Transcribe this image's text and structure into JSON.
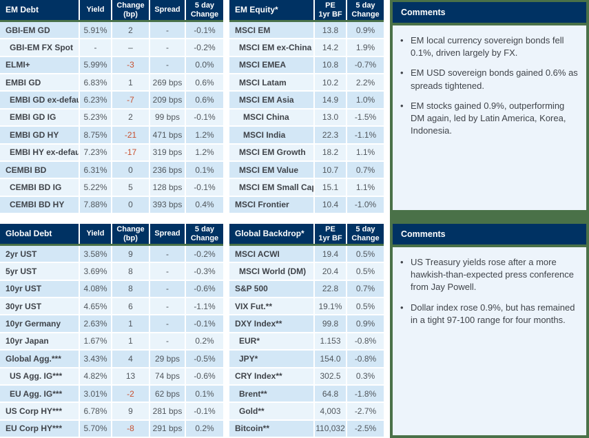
{
  "colors": {
    "navy": "#003263",
    "green": "#4a7148",
    "row_dark": "#d3e7f6",
    "row_light": "#eaf4fb",
    "panel_body": "#edf4fb",
    "red": "#c7502f",
    "text_label": "#3f4349",
    "text_value": "#50565c"
  },
  "tables": {
    "em_debt": {
      "title": "EM Debt",
      "columns": [
        "Yield",
        "Change\n(bp)",
        "Spread",
        "5 day\nChange"
      ],
      "fields": [
        "label",
        "yield",
        "change",
        "spread",
        "five_day"
      ],
      "rows": [
        {
          "label": "GBI-EM GD",
          "indent": 0,
          "yield": "5.91%",
          "change": "2",
          "spread": "-",
          "five_day": "-0.1%"
        },
        {
          "label": "GBI-EM FX Spot",
          "indent": 1,
          "yield": "-",
          "change": "–",
          "spread": "-",
          "five_day": "-0.2%"
        },
        {
          "label": "ELMI+",
          "indent": 0,
          "yield": "5.99%",
          "change": "-3",
          "spread": "-",
          "five_day": "0.0%"
        },
        {
          "label": "EMBI GD",
          "indent": 0,
          "yield": "6.83%",
          "change": "1",
          "spread": "269 bps",
          "five_day": "0.6%"
        },
        {
          "label": "EMBI GD ex-default",
          "indent": 1,
          "yield": "6.23%",
          "change": "-7",
          "spread": "209 bps",
          "five_day": "0.6%"
        },
        {
          "label": "EMBI GD IG",
          "indent": 1,
          "yield": "5.23%",
          "change": "2",
          "spread": "99 bps",
          "five_day": "-0.1%"
        },
        {
          "label": "EMBI GD HY",
          "indent": 1,
          "yield": "8.75%",
          "change": "-21",
          "spread": "471 bps",
          "five_day": "1.2%"
        },
        {
          "label": "EMBI HY ex-default",
          "indent": 1,
          "yield": "7.23%",
          "change": "-17",
          "spread": "319 bps",
          "five_day": "1.2%"
        },
        {
          "label": "CEMBI BD",
          "indent": 0,
          "yield": "6.31%",
          "change": "0",
          "spread": "236 bps",
          "five_day": "0.1%"
        },
        {
          "label": "CEMBI BD IG",
          "indent": 1,
          "yield": "5.22%",
          "change": "5",
          "spread": "128 bps",
          "five_day": "-0.1%"
        },
        {
          "label": "CEMBI BD HY",
          "indent": 1,
          "yield": "7.88%",
          "change": "0",
          "spread": "393 bps",
          "five_day": "0.4%"
        }
      ]
    },
    "em_equity": {
      "title": "EM Equity*",
      "columns": [
        "PE\n1yr BF",
        "5 day\nChange"
      ],
      "fields": [
        "label",
        "pe",
        "five_day"
      ],
      "rows": [
        {
          "label": "MSCI EM",
          "indent": 0,
          "pe": "13.8",
          "five_day": "0.9%"
        },
        {
          "label": "MSCI EM ex-China",
          "indent": 1,
          "pe": "14.2",
          "five_day": "1.9%"
        },
        {
          "label": "MSCI EMEA",
          "indent": 1,
          "pe": "10.8",
          "five_day": "-0.7%"
        },
        {
          "label": "MSCI Latam",
          "indent": 1,
          "pe": "10.2",
          "five_day": "2.2%"
        },
        {
          "label": "MSCI EM Asia",
          "indent": 1,
          "pe": "14.9",
          "five_day": "1.0%"
        },
        {
          "label": "MSCI China",
          "indent": 2,
          "pe": "13.0",
          "five_day": "-1.5%"
        },
        {
          "label": "MSCI India",
          "indent": 2,
          "pe": "22.3",
          "five_day": "-1.1%"
        },
        {
          "label": "MSCI EM Growth",
          "indent": 1,
          "pe": "18.2",
          "five_day": "1.1%"
        },
        {
          "label": "MSCI EM Value",
          "indent": 1,
          "pe": "10.7",
          "five_day": "0.7%"
        },
        {
          "label": "MSCI EM Small Cap",
          "indent": 1,
          "pe": "15.1",
          "five_day": "1.1%"
        },
        {
          "label": "MSCI Frontier",
          "indent": 0,
          "pe": "10.4",
          "five_day": "-1.0%"
        }
      ]
    },
    "global_debt": {
      "title": "Global Debt",
      "columns": [
        "Yield",
        "Change\n(bp)",
        "Spread",
        "5 day\nChange"
      ],
      "fields": [
        "label",
        "yield",
        "change",
        "spread",
        "five_day"
      ],
      "rows": [
        {
          "label": "2yr UST",
          "indent": 0,
          "yield": "3.58%",
          "change": "9",
          "spread": "-",
          "five_day": "-0.2%"
        },
        {
          "label": "5yr UST",
          "indent": 0,
          "yield": "3.69%",
          "change": "8",
          "spread": "-",
          "five_day": "-0.3%"
        },
        {
          "label": "10yr UST",
          "indent": 0,
          "yield": "4.08%",
          "change": "8",
          "spread": "-",
          "five_day": "-0.6%"
        },
        {
          "label": "30yr UST",
          "indent": 0,
          "yield": "4.65%",
          "change": "6",
          "spread": "-",
          "five_day": "-1.1%"
        },
        {
          "label": "10yr Germany",
          "indent": 0,
          "yield": "2.63%",
          "change": "1",
          "spread": "-",
          "five_day": "-0.1%"
        },
        {
          "label": "10yr Japan",
          "indent": 0,
          "yield": "1.67%",
          "change": "1",
          "spread": "-",
          "five_day": "0.2%"
        },
        {
          "label": "Global Agg.***",
          "indent": 0,
          "yield": "3.43%",
          "change": "4",
          "spread": "29 bps",
          "five_day": "-0.5%"
        },
        {
          "label": "US Agg. IG***",
          "indent": 1,
          "yield": "4.82%",
          "change": "13",
          "spread": "74 bps",
          "five_day": "-0.6%"
        },
        {
          "label": "EU Agg. IG***",
          "indent": 1,
          "yield": "3.01%",
          "change": "-2",
          "spread": "62 bps",
          "five_day": "0.1%"
        },
        {
          "label": "US Corp HY***",
          "indent": 0,
          "yield": "6.78%",
          "change": "9",
          "spread": "281 bps",
          "five_day": "-0.1%"
        },
        {
          "label": "EU Corp HY***",
          "indent": 0,
          "yield": "5.70%",
          "change": "-8",
          "spread": "291 bps",
          "five_day": "0.2%"
        }
      ]
    },
    "global_backdrop": {
      "title": "Global Backdrop*",
      "columns": [
        "PE\n1yr BF",
        "5 day\nChange"
      ],
      "fields": [
        "label",
        "pe",
        "five_day"
      ],
      "rows": [
        {
          "label": "MSCI ACWI",
          "indent": 0,
          "pe": "19.4",
          "five_day": "0.5%"
        },
        {
          "label": "MSCI World (DM)",
          "indent": 1,
          "pe": "20.4",
          "five_day": "0.5%"
        },
        {
          "label": "S&P 500",
          "indent": 0,
          "pe": "22.8",
          "five_day": "0.7%"
        },
        {
          "label": "VIX Fut.**",
          "indent": 0,
          "pe": "19.1%",
          "five_day": "0.5%"
        },
        {
          "label": "DXY Index**",
          "indent": 0,
          "pe": "99.8",
          "five_day": "0.9%"
        },
        {
          "label": "EUR*",
          "indent": 1,
          "pe": "1.153",
          "five_day": "-0.8%"
        },
        {
          "label": "JPY*",
          "indent": 1,
          "pe": "154.0",
          "five_day": "-0.8%"
        },
        {
          "label": "CRY Index**",
          "indent": 0,
          "pe": "302.5",
          "five_day": "0.3%"
        },
        {
          "label": "Brent**",
          "indent": 1,
          "pe": "64.8",
          "five_day": "-1.8%"
        },
        {
          "label": "Gold**",
          "indent": 1,
          "pe": "4,003",
          "five_day": "-2.7%"
        },
        {
          "label": "Bitcoin**",
          "indent": 0,
          "pe": "110,032",
          "five_day": "-2.5%"
        }
      ]
    }
  },
  "comments_top": {
    "title": "Comments",
    "bullets": [
      "EM local currency sovereign bonds fell 0.1%, driven largely by FX.",
      "EM USD sovereign bonds gained 0.6% as spreads tightened.",
      "EM stocks gained 0.9%, outperforming DM again, led by Latin America, Korea, Indonesia."
    ]
  },
  "comments_bottom": {
    "title": "Comments",
    "bullets": [
      "US Treasury yields rose after a more hawkish-than-expected press conference from Jay Powell.",
      "Dollar index rose 0.9%, but has remained in a tight 97-100 range for four months."
    ]
  }
}
